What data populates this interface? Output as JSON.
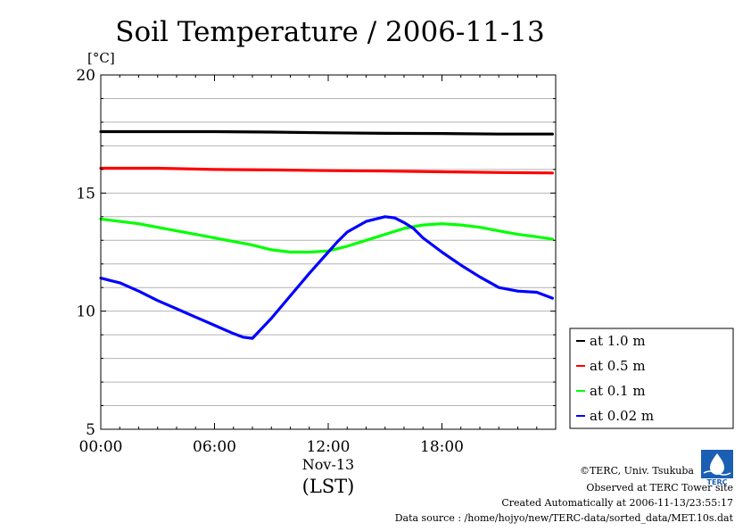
{
  "chart_data": {
    "type": "line",
    "title": "Soil Temperature / 2006-11-13",
    "ylabel": "[°C]",
    "xlabel_date": "Nov-13",
    "xlabel_unit": "(LST)",
    "ylim": [
      5,
      20
    ],
    "xlim": [
      0,
      24
    ],
    "y_ticks": [
      {
        "value": 5,
        "label": "5"
      },
      {
        "value": 10,
        "label": "10"
      },
      {
        "value": 15,
        "label": "15"
      },
      {
        "value": 20,
        "label": "20"
      }
    ],
    "x_ticks": [
      {
        "value": 0,
        "label": "00:00"
      },
      {
        "value": 6,
        "label": "06:00"
      },
      {
        "value": 12,
        "label": "12:00"
      },
      {
        "value": 18,
        "label": "18:00"
      }
    ],
    "grid": true,
    "legend_position": "right",
    "series": [
      {
        "name": "at 1.0 m",
        "color": "#000000",
        "x": [
          0,
          3,
          6,
          9,
          12,
          15,
          18,
          21,
          23.83
        ],
        "y": [
          17.6,
          17.6,
          17.6,
          17.58,
          17.55,
          17.53,
          17.52,
          17.5,
          17.5
        ]
      },
      {
        "name": "at 0.5 m",
        "color": "#ff0000",
        "x": [
          0,
          3,
          6,
          9,
          12,
          15,
          18,
          21,
          23.83
        ],
        "y": [
          16.05,
          16.05,
          16.0,
          15.98,
          15.95,
          15.93,
          15.9,
          15.87,
          15.85
        ]
      },
      {
        "name": "at 0.1 m",
        "color": "#00ff00",
        "x": [
          0,
          1,
          2,
          3,
          4,
          5,
          6,
          7,
          8,
          9,
          10,
          11,
          12,
          13,
          14,
          15,
          16,
          17,
          18,
          19,
          20,
          21,
          22,
          23,
          23.83
        ],
        "y": [
          13.9,
          13.8,
          13.7,
          13.55,
          13.4,
          13.25,
          13.1,
          12.95,
          12.8,
          12.6,
          12.5,
          12.5,
          12.55,
          12.75,
          13.0,
          13.25,
          13.5,
          13.65,
          13.7,
          13.65,
          13.55,
          13.4,
          13.25,
          13.15,
          13.05
        ]
      },
      {
        "name": "at 0.02 m",
        "color": "#0000ff",
        "x": [
          0,
          0.5,
          1,
          2,
          3,
          4,
          5,
          6,
          7,
          7.5,
          8,
          9,
          10,
          11,
          12,
          12.5,
          13,
          14,
          15,
          15.5,
          16,
          16.5,
          17,
          18,
          19,
          20,
          21,
          22,
          23,
          23.83
        ],
        "y": [
          11.4,
          11.3,
          11.2,
          10.85,
          10.45,
          10.1,
          9.75,
          9.4,
          9.05,
          8.9,
          8.85,
          9.7,
          10.65,
          11.6,
          12.5,
          12.95,
          13.35,
          13.8,
          14.0,
          13.95,
          13.75,
          13.5,
          13.1,
          12.5,
          11.95,
          11.45,
          11.0,
          10.85,
          10.8,
          10.55
        ]
      }
    ]
  },
  "footer": {
    "copyright": "©TERC, Univ. Tsukuba",
    "observed": "Observed at TERC Tower site",
    "created": "Created Automatically at 2006-11-13/23:55:17",
    "source": "Data source : /home/hojyo/new/TERC-data/sorted_data/MET.10s.dat"
  },
  "logo": {
    "text": "TERC",
    "color": "#1a5fb4"
  }
}
